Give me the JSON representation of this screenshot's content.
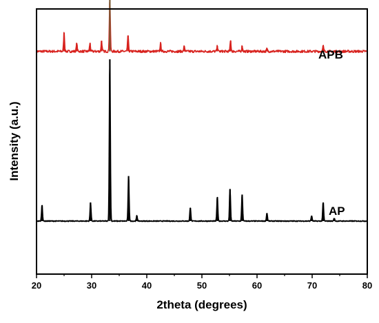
{
  "chart_data": {
    "type": "line",
    "title": "",
    "xlabel": "2theta (degrees)",
    "ylabel": "Intensity (a.u.)",
    "xlim": [
      20,
      80
    ],
    "ylim": [
      0,
      100
    ],
    "xticks": [
      20,
      30,
      40,
      50,
      60,
      70,
      80
    ],
    "grid": false,
    "legend": "none",
    "series": [
      {
        "name": "APB",
        "color": "#d8231f",
        "peak_color": "#7a5a34",
        "baseline": 84,
        "peaks": [
          {
            "x": 25.0,
            "y": 7
          },
          {
            "x": 27.3,
            "y": 3
          },
          {
            "x": 29.7,
            "y": 3
          },
          {
            "x": 31.8,
            "y": 4
          },
          {
            "x": 33.3,
            "y": 20
          },
          {
            "x": 36.6,
            "y": 6
          },
          {
            "x": 42.5,
            "y": 3
          },
          {
            "x": 46.8,
            "y": 2
          },
          {
            "x": 52.8,
            "y": 2
          },
          {
            "x": 55.2,
            "y": 4
          },
          {
            "x": 57.3,
            "y": 2
          },
          {
            "x": 61.8,
            "y": 1
          },
          {
            "x": 72.0,
            "y": 2
          }
        ]
      },
      {
        "name": "AP",
        "color": "#000000",
        "baseline": 20,
        "peaks": [
          {
            "x": 21.0,
            "y": 6
          },
          {
            "x": 29.8,
            "y": 7
          },
          {
            "x": 33.3,
            "y": 61
          },
          {
            "x": 36.7,
            "y": 17
          },
          {
            "x": 38.2,
            "y": 2
          },
          {
            "x": 47.9,
            "y": 5
          },
          {
            "x": 52.8,
            "y": 9
          },
          {
            "x": 55.1,
            "y": 12
          },
          {
            "x": 57.3,
            "y": 10
          },
          {
            "x": 61.8,
            "y": 3
          },
          {
            "x": 69.9,
            "y": 2
          },
          {
            "x": 72.0,
            "y": 7
          },
          {
            "x": 74.0,
            "y": 1
          }
        ]
      }
    ]
  }
}
